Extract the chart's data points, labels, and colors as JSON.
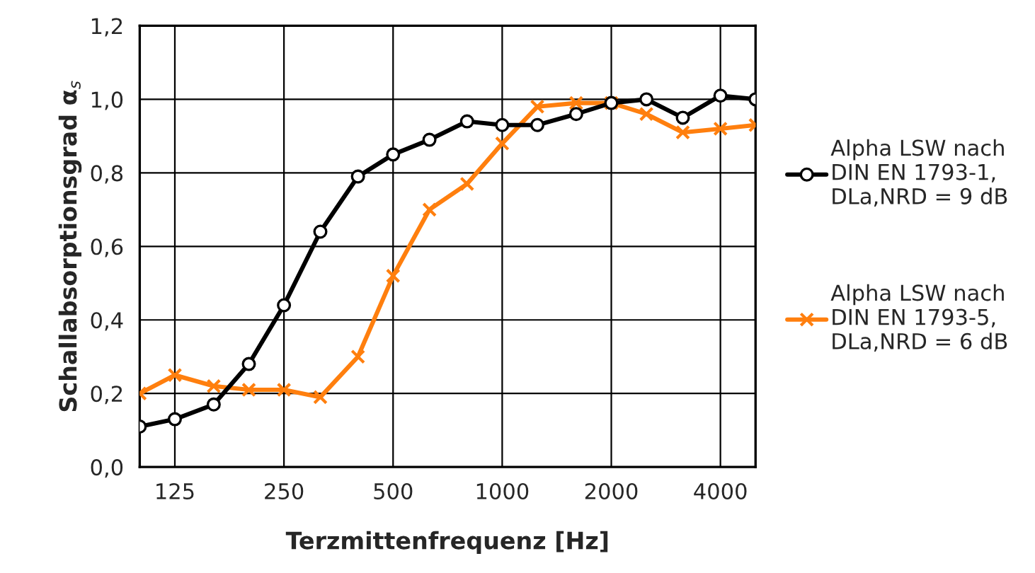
{
  "chart_data": {
    "type": "line",
    "xlabel": "Terzmittenfrequenz [Hz]",
    "ylabel": "Schallabsorptionsgrad α$_{s}$",
    "x": [
      100,
      125,
      160,
      200,
      250,
      315,
      400,
      500,
      630,
      800,
      1000,
      1250,
      1600,
      2000,
      2500,
      3150,
      4000,
      5000
    ],
    "series": [
      {
        "name": "Alpha LSW nach\nDIN EN 1793-1,\nDLa,NRD = 9 dB",
        "color": "#000000",
        "marker": "circle",
        "values": [
          0.11,
          0.13,
          0.17,
          0.28,
          0.44,
          0.64,
          0.79,
          0.85,
          0.89,
          0.94,
          0.93,
          0.93,
          0.96,
          0.99,
          1.0,
          0.95,
          1.01,
          1.0
        ]
      },
      {
        "name": "Alpha LSW nach\nDIN EN 1793-5,\nDLa,NRD = 6 dB",
        "color": "#ff7f0e",
        "marker": "cross",
        "values": [
          0.2,
          0.25,
          0.22,
          0.21,
          0.21,
          0.19,
          0.3,
          0.52,
          0.7,
          0.77,
          0.88,
          0.98,
          0.99,
          0.99,
          0.96,
          0.91,
          0.92,
          0.93
        ]
      }
    ],
    "log": "x",
    "xlim": [
      100,
      5000
    ],
    "xticks": [
      125,
      250,
      500,
      1000,
      2000,
      4000
    ],
    "ylim": [
      0,
      1.2
    ],
    "yticks": [
      {
        "value": 0,
        "label": "0,0"
      },
      {
        "value": 0.2,
        "label": "0,2"
      },
      {
        "value": 0.4,
        "label": "0,4"
      },
      {
        "value": 0.6,
        "label": "0,6"
      },
      {
        "value": 0.8,
        "label": "0,8"
      },
      {
        "value": 1.0,
        "label": "1,0"
      },
      {
        "value": 1.2,
        "label": "1,2"
      }
    ],
    "grid": true,
    "legend": "right",
    "line_style": "solid"
  }
}
